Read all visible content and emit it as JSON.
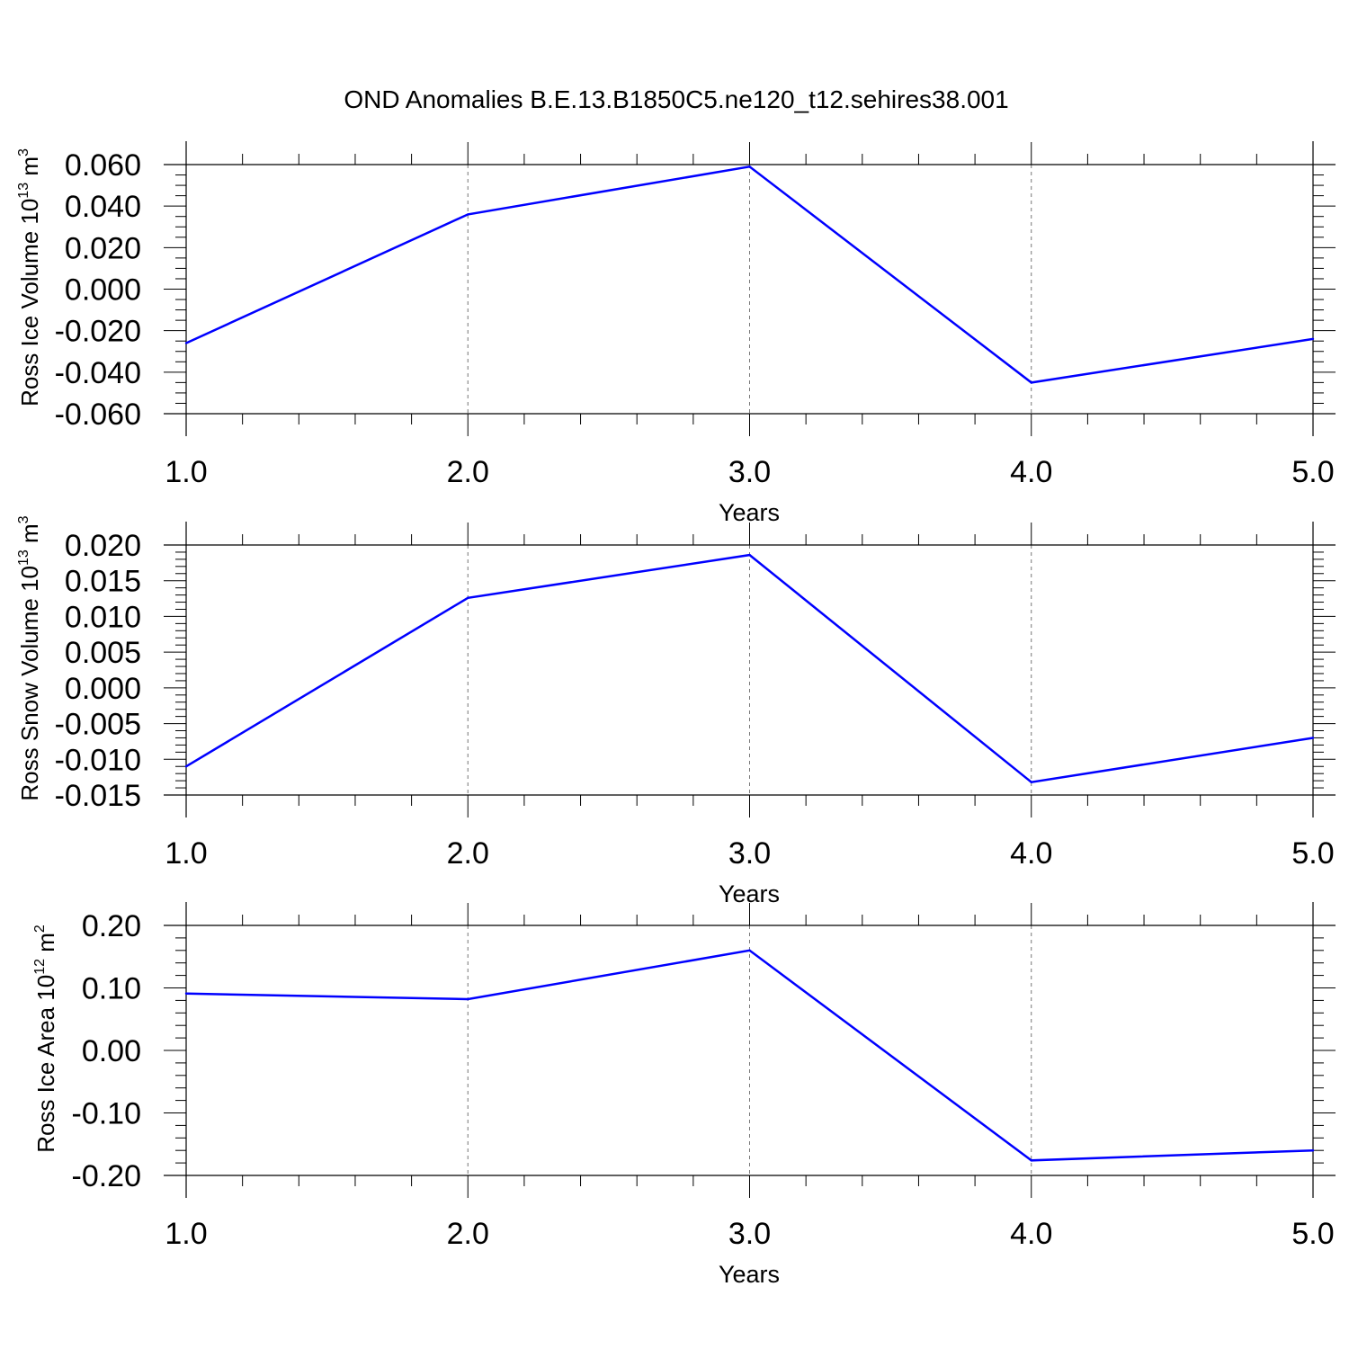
{
  "title": "OND Anomalies B.E.13.B1850C5.ne120_t12.sehires38.001",
  "line_color": "#0000ff",
  "chart_data": [
    {
      "type": "line",
      "ylabel_parts": [
        "Ross Ice Volume 10",
        "13",
        " m",
        "3"
      ],
      "xlabel": "Years",
      "x": [
        1,
        2,
        3,
        4,
        5
      ],
      "values": [
        -0.026,
        0.036,
        0.059,
        -0.045,
        -0.024
      ],
      "xlim": [
        1,
        5
      ],
      "ylim": [
        -0.06,
        0.06
      ],
      "xticks": [
        "1.0",
        "2.0",
        "3.0",
        "4.0",
        "5.0"
      ],
      "yticks": [
        "0.060",
        "0.040",
        "0.020",
        "0.000",
        "-0.020",
        "-0.040",
        "-0.060"
      ],
      "grid": "vertical dashed at major x ticks"
    },
    {
      "type": "line",
      "ylabel_parts": [
        "Ross Snow Volume 10",
        "13",
        " m",
        "3"
      ],
      "xlabel": "Years",
      "x": [
        1,
        2,
        3,
        4,
        5
      ],
      "values": [
        -0.011,
        0.0126,
        0.0186,
        -0.0132,
        -0.007
      ],
      "xlim": [
        1,
        5
      ],
      "ylim": [
        -0.015,
        0.02
      ],
      "xticks": [
        "1.0",
        "2.0",
        "3.0",
        "4.0",
        "5.0"
      ],
      "yticks": [
        "0.020",
        "0.015",
        "0.010",
        "0.005",
        "0.000",
        "-0.005",
        "-0.010",
        "-0.015"
      ],
      "grid": "vertical dashed at major x ticks"
    },
    {
      "type": "line",
      "ylabel_parts": [
        "Ross Ice Area 10",
        "12",
        " m",
        "2"
      ],
      "xlabel": "Years",
      "x": [
        1,
        2,
        3,
        4,
        5
      ],
      "values": [
        0.091,
        0.082,
        0.16,
        -0.176,
        -0.16
      ],
      "xlim": [
        1,
        5
      ],
      "ylim": [
        -0.2,
        0.2
      ],
      "xticks": [
        "1.0",
        "2.0",
        "3.0",
        "4.0",
        "5.0"
      ],
      "yticks": [
        "0.20",
        "0.10",
        "0.00",
        "-0.10",
        "-0.20"
      ],
      "grid": "vertical dashed at major x ticks"
    }
  ]
}
